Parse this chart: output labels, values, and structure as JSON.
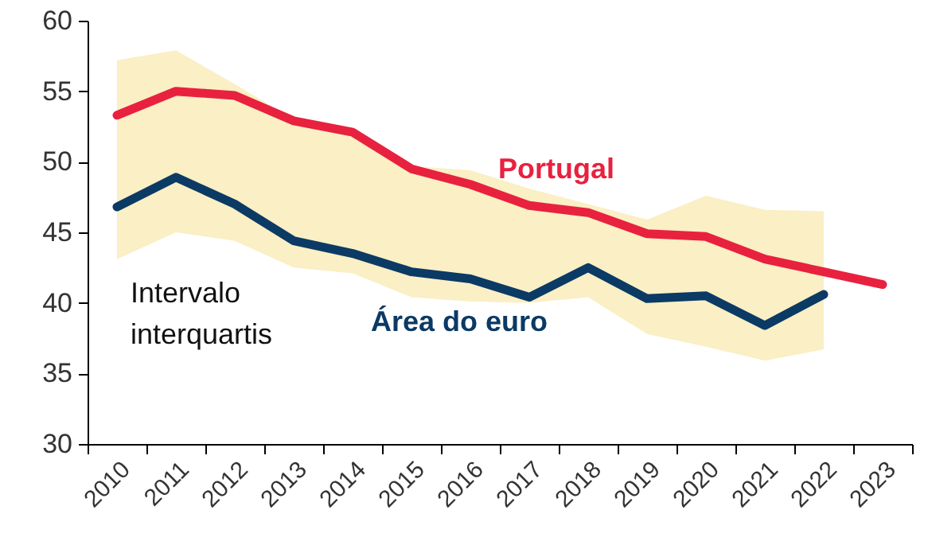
{
  "chart_data": {
    "type": "line",
    "categories": [
      "2010",
      "2011",
      "2012",
      "2013",
      "2014",
      "2015",
      "2016",
      "2017",
      "2018",
      "2019",
      "2020",
      "2021",
      "2022",
      "2023"
    ],
    "series": [
      {
        "name": "Portugal",
        "color": "#e8213f",
        "values": [
          53.3,
          55.0,
          54.7,
          52.9,
          52.1,
          49.5,
          48.4,
          46.9,
          46.4,
          44.9,
          44.7,
          43.1,
          42.2,
          41.3
        ]
      },
      {
        "name": "Área do euro",
        "color": "#0b3a64",
        "values": [
          46.8,
          48.9,
          47.0,
          44.4,
          43.5,
          42.2,
          41.7,
          40.4,
          42.5,
          40.3,
          40.5,
          38.4,
          40.6,
          null
        ],
        "lower": [
          43.1,
          45.0,
          44.4,
          42.5,
          42.1,
          40.4,
          40.1,
          40.0,
          40.4,
          37.8,
          36.9,
          35.9,
          36.7,
          null
        ],
        "upper": [
          57.2,
          57.9,
          55.5,
          53.0,
          52.3,
          49.7,
          49.4,
          48.1,
          47.0,
          45.9,
          47.6,
          46.6,
          46.5,
          null
        ]
      }
    ],
    "annotations": [
      "Intervalo interquartis"
    ],
    "ylim": [
      30,
      60
    ],
    "yticks": [
      30,
      35,
      40,
      45,
      50,
      55,
      60
    ],
    "grid": false
  }
}
